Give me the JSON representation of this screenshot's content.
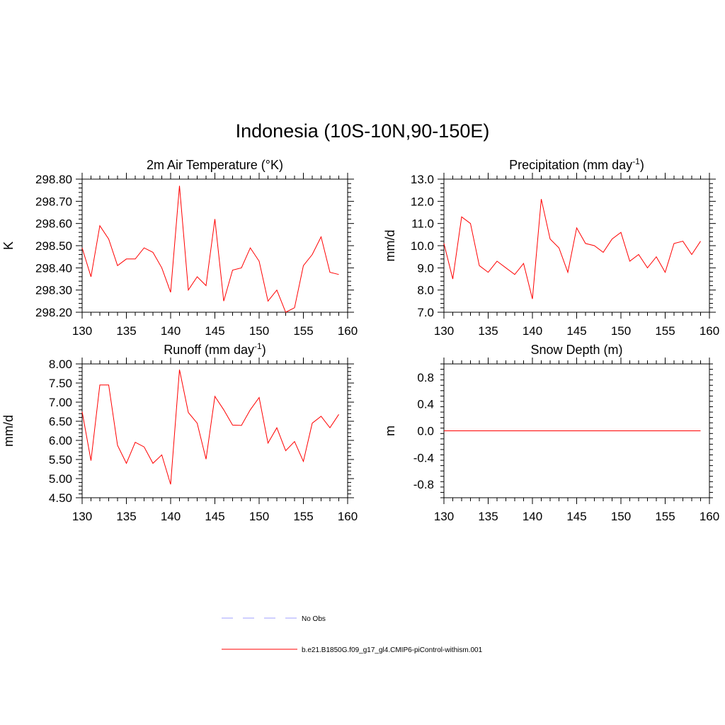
{
  "title": "Indonesia (10S-10N,90-150E)",
  "colors": {
    "model_line": "#ff0000",
    "obs_line": "#a0a0ff",
    "axis": "#000000"
  },
  "legend": [
    {
      "label": "No Obs",
      "style": "dashed",
      "color": "#a0a0ff"
    },
    {
      "label": "b.e21.B1850G.f09_g17_gl4.CMIP6-piControl-withism.001",
      "style": "solid",
      "color": "#ff0000"
    }
  ],
  "chart_data": [
    {
      "type": "line",
      "title": "2m Air Temperature (°K)",
      "ylabel": "K",
      "xlim": [
        130,
        160
      ],
      "ylim": [
        298.2,
        298.8
      ],
      "xticks": [
        "130",
        "135",
        "140",
        "145",
        "150",
        "155",
        "160"
      ],
      "yticks": [
        "298.20",
        "298.30",
        "298.40",
        "298.50",
        "298.60",
        "298.70",
        "298.80"
      ],
      "x": [
        130,
        131,
        132,
        133,
        134,
        135,
        136,
        137,
        138,
        139,
        140,
        141,
        142,
        143,
        144,
        145,
        146,
        147,
        148,
        149,
        150,
        151,
        152,
        153,
        154,
        155,
        156,
        157,
        158,
        159
      ],
      "series": [
        {
          "name": "b.e21.B1850G.f09_g17_gl4.CMIP6-piControl-withism.001",
          "values": [
            298.49,
            298.36,
            298.59,
            298.53,
            298.41,
            298.44,
            298.44,
            298.49,
            298.47,
            298.4,
            298.29,
            298.77,
            298.3,
            298.36,
            298.32,
            298.62,
            298.25,
            298.39,
            298.4,
            298.49,
            298.43,
            298.25,
            298.3,
            298.2,
            298.22,
            298.41,
            298.46,
            298.54,
            298.38,
            298.37
          ]
        }
      ]
    },
    {
      "type": "line",
      "title": "Precipitation (mm day-1)",
      "ylabel": "mm/d",
      "xlim": [
        130,
        160
      ],
      "ylim": [
        7.0,
        13.0
      ],
      "xticks": [
        "130",
        "135",
        "140",
        "145",
        "150",
        "155",
        "160"
      ],
      "yticks": [
        "7.0",
        "8.0",
        "9.0",
        "10.0",
        "11.0",
        "12.0",
        "13.0"
      ],
      "x": [
        130,
        131,
        132,
        133,
        134,
        135,
        136,
        137,
        138,
        139,
        140,
        141,
        142,
        143,
        144,
        145,
        146,
        147,
        148,
        149,
        150,
        151,
        152,
        153,
        154,
        155,
        156,
        157,
        158,
        159
      ],
      "series": [
        {
          "name": "b.e21.B1850G.f09_g17_gl4.CMIP6-piControl-withism.001",
          "values": [
            10.1,
            8.5,
            11.3,
            11.0,
            9.1,
            8.8,
            9.3,
            9.0,
            8.7,
            9.2,
            7.6,
            12.1,
            10.3,
            9.9,
            8.8,
            10.8,
            10.1,
            10.0,
            9.7,
            10.3,
            10.6,
            9.3,
            9.6,
            9.0,
            9.5,
            8.8,
            10.1,
            10.2,
            9.6,
            10.2
          ]
        }
      ]
    },
    {
      "type": "line",
      "title": "Runoff (mm day-1)",
      "ylabel": "mm/d",
      "xlim": [
        130,
        160
      ],
      "ylim": [
        4.5,
        8.0
      ],
      "xticks": [
        "130",
        "135",
        "140",
        "145",
        "150",
        "155",
        "160"
      ],
      "yticks": [
        "4.50",
        "5.00",
        "5.50",
        "6.00",
        "6.50",
        "7.00",
        "7.50",
        "8.00"
      ],
      "x": [
        130,
        131,
        132,
        133,
        134,
        135,
        136,
        137,
        138,
        139,
        140,
        141,
        142,
        143,
        144,
        145,
        146,
        147,
        148,
        149,
        150,
        151,
        152,
        153,
        154,
        155,
        156,
        157,
        158,
        159
      ],
      "series": [
        {
          "name": "b.e21.B1850G.f09_g17_gl4.CMIP6-piControl-withism.001",
          "values": [
            6.75,
            5.47,
            7.45,
            7.45,
            5.87,
            5.4,
            5.95,
            5.83,
            5.4,
            5.62,
            4.85,
            7.85,
            6.73,
            6.45,
            5.51,
            7.15,
            6.8,
            6.4,
            6.39,
            6.8,
            7.12,
            5.93,
            6.33,
            5.73,
            5.97,
            5.45,
            6.45,
            6.63,
            6.33,
            6.68
          ]
        }
      ]
    },
    {
      "type": "line",
      "title": "Snow Depth (m)",
      "ylabel": "m",
      "xlim": [
        130,
        160
      ],
      "ylim": [
        -1.0,
        1.0
      ],
      "xticks": [
        "130",
        "135",
        "140",
        "145",
        "150",
        "155",
        "160"
      ],
      "yticks": [
        "-0.8",
        "-0.4",
        "0.0",
        "0.4",
        "0.8"
      ],
      "x": [
        130,
        131,
        132,
        133,
        134,
        135,
        136,
        137,
        138,
        139,
        140,
        141,
        142,
        143,
        144,
        145,
        146,
        147,
        148,
        149,
        150,
        151,
        152,
        153,
        154,
        155,
        156,
        157,
        158,
        159
      ],
      "series": [
        {
          "name": "b.e21.B1850G.f09_g17_gl4.CMIP6-piControl-withism.001",
          "values": [
            0,
            0,
            0,
            0,
            0,
            0,
            0,
            0,
            0,
            0,
            0,
            0,
            0,
            0,
            0,
            0,
            0,
            0,
            0,
            0,
            0,
            0,
            0,
            0,
            0,
            0,
            0,
            0,
            0,
            0
          ]
        }
      ]
    }
  ]
}
